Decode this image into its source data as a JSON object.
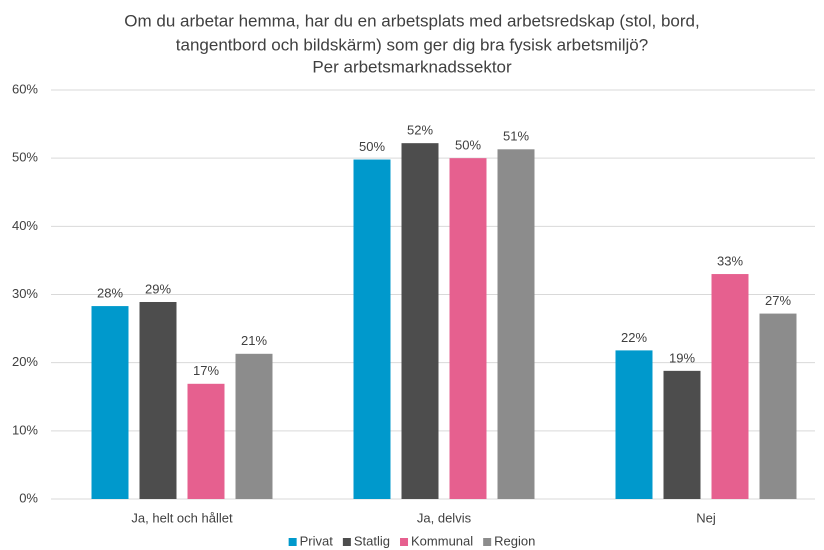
{
  "chart_data": {
    "type": "bar",
    "title": [
      "Om du arbetar hemma, har du en arbetsplats med arbetsredskap (stol, bord,",
      "tangentbord och bildskärm) som ger dig bra fysisk arbetsmiljö?"
    ],
    "subtitle": "Per arbetsmarknadssektor",
    "categories": [
      "Ja, helt och hållet",
      "Ja, delvis",
      "Nej"
    ],
    "series": [
      {
        "name": "Privat",
        "color": "#0099cc",
        "values": [
          28.3,
          49.8,
          21.8
        ],
        "value_labels": [
          "28%",
          "50%",
          "22%"
        ]
      },
      {
        "name": "Statlig",
        "color": "#4d4d4d",
        "values": [
          28.9,
          52.2,
          18.8
        ],
        "value_labels": [
          "29%",
          "52%",
          "19%"
        ]
      },
      {
        "name": "Kommunal",
        "color": "#e6608f",
        "values": [
          16.9,
          50.0,
          33.0
        ],
        "value_labels": [
          "17%",
          "50%",
          "33%"
        ]
      },
      {
        "name": "Region",
        "color": "#8c8c8c",
        "values": [
          21.3,
          51.3,
          27.2
        ],
        "value_labels": [
          "21%",
          "51%",
          "27%"
        ]
      }
    ],
    "ylim": [
      0,
      60
    ],
    "yticks": [
      {
        "value": 0,
        "label": "0%"
      },
      {
        "value": 10,
        "label": "10%"
      },
      {
        "value": 20,
        "label": "20%"
      },
      {
        "value": 30,
        "label": "30%"
      },
      {
        "value": 40,
        "label": "40%"
      },
      {
        "value": 50,
        "label": "50%"
      },
      {
        "value": 60,
        "label": "60%"
      }
    ],
    "grid": true,
    "legend": "bottom"
  }
}
